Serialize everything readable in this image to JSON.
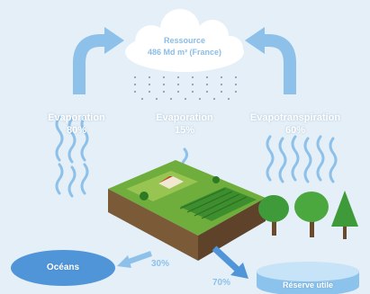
{
  "cloud": {
    "title": "Ressource",
    "subtitle": "486 Md m³ (France)"
  },
  "flows": [
    {
      "label": "Evaporation",
      "value": "80%"
    },
    {
      "label": "Evaporation",
      "value": "15%"
    },
    {
      "label": "Evapotranspiration",
      "value": "60%"
    }
  ],
  "ocean_label": "Océans",
  "reservoir_label": "Réserve utile",
  "runoff": [
    {
      "value": "30%"
    },
    {
      "value": "70%"
    }
  ],
  "colors": {
    "background": "#e4eff7",
    "arrow": "#8ec1ea",
    "ocean": "#4f95d8",
    "reservoir": "#a9d2f0",
    "trees": "#3f9a3a"
  }
}
